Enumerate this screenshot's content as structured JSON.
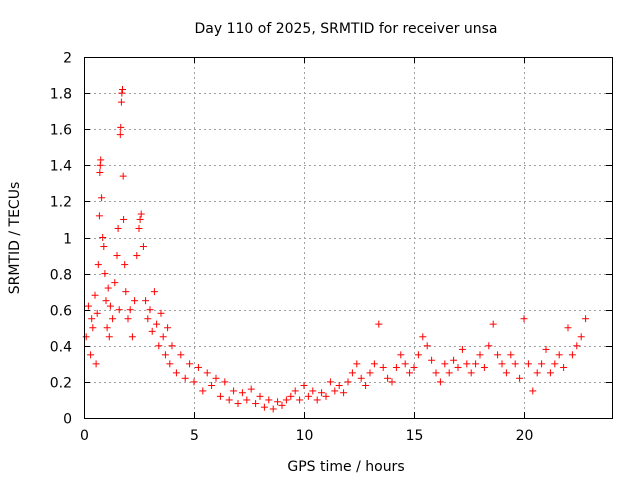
{
  "chart_data": {
    "type": "scatter",
    "title": "Day 110 of 2025, SRMTID for receiver unsa",
    "xlabel": "GPS time / hours",
    "ylabel": "SRMTID / TECUs",
    "xlim": [
      0,
      24
    ],
    "ylim": [
      0,
      2
    ],
    "xticks": [
      0,
      5,
      10,
      15,
      20
    ],
    "xtick_labels": [
      "0",
      "5",
      "10",
      "15",
      "20"
    ],
    "yticks": [
      0,
      0.2,
      0.4,
      0.6,
      0.8,
      1,
      1.2,
      1.4,
      1.6,
      1.8,
      2
    ],
    "ytick_labels": [
      "0",
      "0.2",
      "0.4",
      "0.6",
      "0.8",
      "1",
      "1.2",
      "1.4",
      "1.6",
      "1.8",
      "2"
    ],
    "grid": true,
    "marker": "plus",
    "color": "#ff0000",
    "series": [
      {
        "name": "SRMTID",
        "points": [
          [
            0.1,
            0.45
          ],
          [
            0.2,
            0.62
          ],
          [
            0.3,
            0.35
          ],
          [
            0.35,
            0.55
          ],
          [
            0.4,
            0.5
          ],
          [
            0.5,
            0.68
          ],
          [
            0.55,
            0.3
          ],
          [
            0.6,
            0.58
          ],
          [
            0.65,
            0.85
          ],
          [
            0.7,
            1.12
          ],
          [
            0.72,
            1.36
          ],
          [
            0.74,
            1.4
          ],
          [
            0.76,
            1.43
          ],
          [
            0.8,
            1.22
          ],
          [
            0.85,
            1.0
          ],
          [
            0.9,
            0.95
          ],
          [
            0.95,
            0.8
          ],
          [
            1.0,
            0.65
          ],
          [
            1.05,
            0.5
          ],
          [
            1.1,
            0.72
          ],
          [
            1.15,
            0.45
          ],
          [
            1.2,
            0.62
          ],
          [
            1.3,
            0.55
          ],
          [
            1.4,
            0.75
          ],
          [
            1.5,
            0.9
          ],
          [
            1.55,
            1.05
          ],
          [
            1.6,
            0.6
          ],
          [
            1.65,
            1.57
          ],
          [
            1.67,
            1.61
          ],
          [
            1.7,
            1.75
          ],
          [
            1.72,
            1.8
          ],
          [
            1.75,
            1.82
          ],
          [
            1.78,
            1.34
          ],
          [
            1.8,
            1.1
          ],
          [
            1.85,
            0.85
          ],
          [
            1.9,
            0.7
          ],
          [
            2.0,
            0.55
          ],
          [
            2.1,
            0.6
          ],
          [
            2.2,
            0.45
          ],
          [
            2.3,
            0.65
          ],
          [
            2.4,
            0.9
          ],
          [
            2.5,
            1.05
          ],
          [
            2.55,
            1.1
          ],
          [
            2.6,
            1.13
          ],
          [
            2.7,
            0.95
          ],
          [
            2.8,
            0.65
          ],
          [
            2.9,
            0.55
          ],
          [
            3.0,
            0.6
          ],
          [
            3.1,
            0.48
          ],
          [
            3.2,
            0.7
          ],
          [
            3.3,
            0.52
          ],
          [
            3.4,
            0.4
          ],
          [
            3.5,
            0.58
          ],
          [
            3.6,
            0.45
          ],
          [
            3.7,
            0.35
          ],
          [
            3.8,
            0.5
          ],
          [
            3.9,
            0.3
          ],
          [
            4.0,
            0.4
          ],
          [
            4.2,
            0.25
          ],
          [
            4.4,
            0.35
          ],
          [
            4.6,
            0.22
          ],
          [
            4.8,
            0.3
          ],
          [
            5.0,
            0.2
          ],
          [
            5.2,
            0.28
          ],
          [
            5.4,
            0.15
          ],
          [
            5.6,
            0.25
          ],
          [
            5.8,
            0.18
          ],
          [
            6.0,
            0.22
          ],
          [
            6.2,
            0.12
          ],
          [
            6.4,
            0.2
          ],
          [
            6.6,
            0.1
          ],
          [
            6.8,
            0.15
          ],
          [
            7.0,
            0.08
          ],
          [
            7.2,
            0.14
          ],
          [
            7.4,
            0.1
          ],
          [
            7.6,
            0.16
          ],
          [
            7.8,
            0.08
          ],
          [
            8.0,
            0.12
          ],
          [
            8.2,
            0.06
          ],
          [
            8.4,
            0.1
          ],
          [
            8.6,
            0.05
          ],
          [
            8.8,
            0.09
          ],
          [
            9.0,
            0.07
          ],
          [
            9.2,
            0.1
          ],
          [
            9.4,
            0.12
          ],
          [
            9.6,
            0.15
          ],
          [
            9.8,
            0.1
          ],
          [
            10.0,
            0.18
          ],
          [
            10.2,
            0.12
          ],
          [
            10.4,
            0.15
          ],
          [
            10.6,
            0.1
          ],
          [
            10.8,
            0.14
          ],
          [
            11.0,
            0.12
          ],
          [
            11.2,
            0.2
          ],
          [
            11.4,
            0.15
          ],
          [
            11.6,
            0.18
          ],
          [
            11.8,
            0.14
          ],
          [
            12.0,
            0.2
          ],
          [
            12.2,
            0.25
          ],
          [
            12.4,
            0.3
          ],
          [
            12.6,
            0.22
          ],
          [
            12.8,
            0.18
          ],
          [
            13.0,
            0.25
          ],
          [
            13.2,
            0.3
          ],
          [
            13.4,
            0.52
          ],
          [
            13.6,
            0.28
          ],
          [
            13.8,
            0.22
          ],
          [
            14.0,
            0.2
          ],
          [
            14.2,
            0.28
          ],
          [
            14.4,
            0.35
          ],
          [
            14.6,
            0.3
          ],
          [
            14.8,
            0.25
          ],
          [
            15.0,
            0.28
          ],
          [
            15.2,
            0.35
          ],
          [
            15.4,
            0.45
          ],
          [
            15.6,
            0.4
          ],
          [
            15.8,
            0.32
          ],
          [
            16.0,
            0.25
          ],
          [
            16.2,
            0.2
          ],
          [
            16.4,
            0.3
          ],
          [
            16.6,
            0.25
          ],
          [
            16.8,
            0.32
          ],
          [
            17.0,
            0.28
          ],
          [
            17.2,
            0.38
          ],
          [
            17.4,
            0.3
          ],
          [
            17.6,
            0.25
          ],
          [
            17.8,
            0.3
          ],
          [
            18.0,
            0.35
          ],
          [
            18.2,
            0.28
          ],
          [
            18.4,
            0.4
          ],
          [
            18.6,
            0.52
          ],
          [
            18.8,
            0.35
          ],
          [
            19.0,
            0.3
          ],
          [
            19.2,
            0.25
          ],
          [
            19.4,
            0.35
          ],
          [
            19.6,
            0.3
          ],
          [
            19.8,
            0.22
          ],
          [
            20.0,
            0.55
          ],
          [
            20.2,
            0.3
          ],
          [
            20.4,
            0.15
          ],
          [
            20.6,
            0.25
          ],
          [
            20.8,
            0.3
          ],
          [
            21.0,
            0.38
          ],
          [
            21.2,
            0.25
          ],
          [
            21.4,
            0.3
          ],
          [
            21.6,
            0.35
          ],
          [
            21.8,
            0.28
          ],
          [
            22.0,
            0.5
          ],
          [
            22.2,
            0.35
          ],
          [
            22.4,
            0.4
          ],
          [
            22.6,
            0.45
          ],
          [
            22.8,
            0.55
          ]
        ]
      }
    ]
  }
}
